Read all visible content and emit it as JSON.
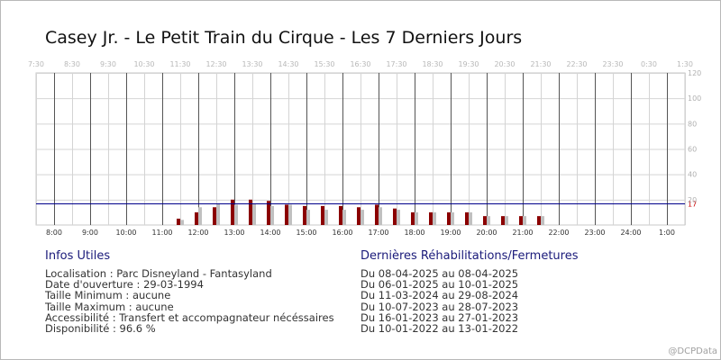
{
  "title": "Casey Jr. - Le Petit Train du Cirque - Les 7 Derniers Jours",
  "chart_data": {
    "type": "bar",
    "title": "Casey Jr. - Le Petit Train du Cirque - Les 7 Derniers Jours",
    "top_axis_labels": [
      "7:30",
      "8:30",
      "9:30",
      "10:30",
      "11:30",
      "12:30",
      "13:30",
      "14:30",
      "15:30",
      "16:30",
      "17:30",
      "18:30",
      "19:30",
      "20:30",
      "21:30",
      "22:30",
      "23:30",
      "0:30",
      "1:30"
    ],
    "bottom_axis_labels": [
      "8:00",
      "9:00",
      "10:00",
      "11:00",
      "12:00",
      "13:00",
      "14:00",
      "15:00",
      "16:00",
      "17:00",
      "18:00",
      "19:00",
      "20:00",
      "21:00",
      "22:00",
      "23:00",
      "24:00",
      "1:00"
    ],
    "categories": [
      "11:00",
      "11:30",
      "12:00",
      "12:30",
      "13:00",
      "13:30",
      "14:00",
      "14:30",
      "15:00",
      "15:30",
      "16:00",
      "16:30",
      "17:00",
      "17:30",
      "18:00",
      "18:30",
      "19:00",
      "19:30",
      "20:00",
      "20:30",
      "21:00",
      "21:30"
    ],
    "series": [
      {
        "values": [
          null,
          5,
          10,
          14,
          20,
          20,
          19,
          16,
          15,
          15,
          15,
          14,
          16,
          13,
          10,
          10,
          10,
          10,
          7,
          7,
          7,
          7
        ],
        "color": "#8b0000"
      },
      {
        "values": [
          null,
          4,
          14,
          17,
          16,
          17,
          15,
          16,
          12,
          12,
          12,
          12,
          14,
          12,
          10,
          10,
          10,
          10,
          7,
          7,
          7,
          7
        ],
        "color": "#c0c0c0"
      }
    ],
    "y_ticks": [
      20,
      40,
      60,
      80,
      100,
      120
    ],
    "ylim": [
      0,
      120
    ],
    "reference_line": {
      "value": 17,
      "label": "17",
      "color": "#00008b"
    },
    "grid": true
  },
  "info": {
    "title": "Infos Utiles",
    "lines": [
      "Localisation : Parc Disneyland - Fantasyland",
      "Date d'ouverture : 29-03-1994",
      "Taille Minimum : aucune",
      "Taille Maximum : aucune",
      "Accessibilité : Transfert et accompagnateur nécéssaires",
      "Disponibilité : 96.6 %"
    ]
  },
  "closures": {
    "title": "Dernières Réhabilitations/Fermetures",
    "lines": [
      "Du 08-04-2025 au 08-04-2025",
      "Du 06-01-2025 au 10-01-2025",
      "Du 11-03-2024 au 29-08-2024",
      "Du 10-07-2023 au 28-07-2023",
      "Du 16-01-2023 au 27-01-2023",
      "Du 10-01-2022 au 13-01-2022"
    ]
  },
  "watermark": "@DCPData"
}
